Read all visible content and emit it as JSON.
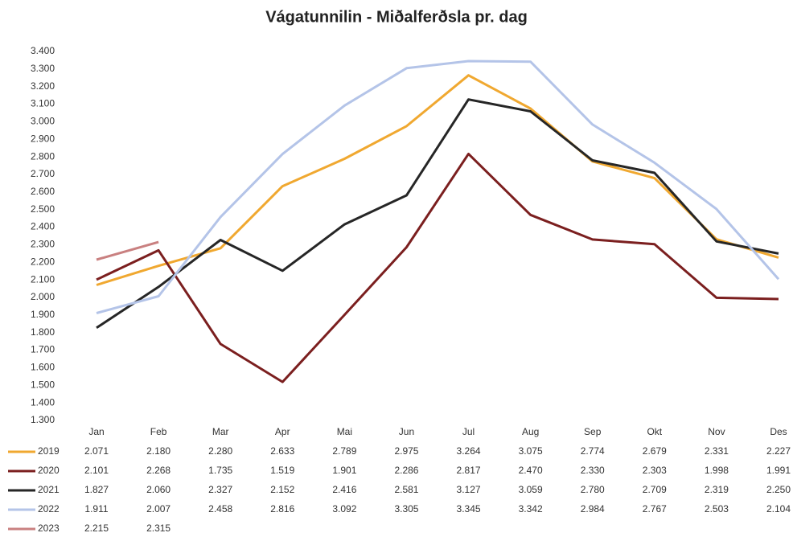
{
  "chart_data": {
    "type": "line",
    "title": "Vágatunnilin - Miðalferðsla pr. dag",
    "categories": [
      "Jan",
      "Feb",
      "Mar",
      "Apr",
      "Mai",
      "Jun",
      "Jul",
      "Aug",
      "Sep",
      "Okt",
      "Nov",
      "Des"
    ],
    "series": [
      {
        "name": "2019",
        "color": "#f0a830",
        "values": [
          2071,
          2180,
          2280,
          2633,
          2789,
          2975,
          3264,
          3075,
          2774,
          2679,
          2331,
          2227
        ],
        "value_labels": [
          "2.071",
          "2.180",
          "2.280",
          "2.633",
          "2.789",
          "2.975",
          "3.264",
          "3.075",
          "2.774",
          "2.679",
          "2.331",
          "2.227"
        ]
      },
      {
        "name": "2020",
        "color": "#7b1f1f",
        "values": [
          2101,
          2268,
          1735,
          1519,
          1901,
          2286,
          2817,
          2470,
          2330,
          2303,
          1998,
          1991
        ],
        "value_labels": [
          "2.101",
          "2.268",
          "1.735",
          "1.519",
          "1.901",
          "2.286",
          "2.817",
          "2.470",
          "2.330",
          "2.303",
          "1.998",
          "1.991"
        ]
      },
      {
        "name": "2021",
        "color": "#262626",
        "values": [
          1827,
          2060,
          2327,
          2152,
          2416,
          2581,
          3127,
          3059,
          2780,
          2709,
          2319,
          2250
        ],
        "value_labels": [
          "1.827",
          "2.060",
          "2.327",
          "2.152",
          "2.416",
          "2.581",
          "3.127",
          "3.059",
          "2.780",
          "2.709",
          "2.319",
          "2.250"
        ]
      },
      {
        "name": "2022",
        "color": "#b4c4e8",
        "values": [
          1911,
          2007,
          2458,
          2816,
          3092,
          3305,
          3345,
          3342,
          2984,
          2767,
          2503,
          2104
        ],
        "value_labels": [
          "1.911",
          "2.007",
          "2.458",
          "2.816",
          "3.092",
          "3.305",
          "3.345",
          "3.342",
          "2.984",
          "2.767",
          "2.503",
          "2.104"
        ]
      },
      {
        "name": "2023",
        "color": "#c98080",
        "values": [
          2215,
          2315,
          null,
          null,
          null,
          null,
          null,
          null,
          null,
          null,
          null,
          null
        ],
        "value_labels": [
          "2.215",
          "2.315",
          null,
          null,
          null,
          null,
          null,
          null,
          null,
          null,
          null,
          null
        ]
      }
    ],
    "ylim": [
      1300,
      3400
    ],
    "yticks": [
      {
        "value": 1300,
        "label": "1.300"
      },
      {
        "value": 1400,
        "label": "1.400"
      },
      {
        "value": 1500,
        "label": "1.500"
      },
      {
        "value": 1600,
        "label": "1.600"
      },
      {
        "value": 1700,
        "label": "1.700"
      },
      {
        "value": 1800,
        "label": "1.800"
      },
      {
        "value": 1900,
        "label": "1.900"
      },
      {
        "value": 2000,
        "label": "2.000"
      },
      {
        "value": 2100,
        "label": "2.100"
      },
      {
        "value": 2200,
        "label": "2.200"
      },
      {
        "value": 2300,
        "label": "2.300"
      },
      {
        "value": 2400,
        "label": "2.400"
      },
      {
        "value": 2500,
        "label": "2.500"
      },
      {
        "value": 2600,
        "label": "2.600"
      },
      {
        "value": 2700,
        "label": "2.700"
      },
      {
        "value": 2800,
        "label": "2.800"
      },
      {
        "value": 2900,
        "label": "2.900"
      },
      {
        "value": 3000,
        "label": "3.000"
      },
      {
        "value": 3100,
        "label": "3.100"
      },
      {
        "value": 3200,
        "label": "3.200"
      },
      {
        "value": 3300,
        "label": "3.300"
      },
      {
        "value": 3400,
        "label": "3.400"
      }
    ],
    "grid": false
  }
}
